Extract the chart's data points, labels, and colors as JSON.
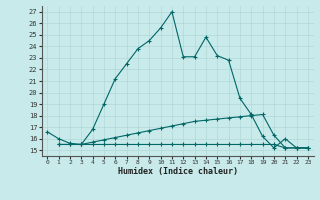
{
  "xlabel": "Humidex (Indice chaleur)",
  "ylabel": "",
  "bg_color": "#c8eaea",
  "grid_color": "#b0d8d8",
  "line_color": "#006666",
  "xlim": [
    -0.5,
    23.5
  ],
  "ylim": [
    14.5,
    27.5
  ],
  "xticks": [
    0,
    1,
    2,
    3,
    4,
    5,
    6,
    7,
    8,
    9,
    10,
    11,
    12,
    13,
    14,
    15,
    16,
    17,
    18,
    19,
    20,
    21,
    22,
    23
  ],
  "yticks": [
    15,
    16,
    17,
    18,
    19,
    20,
    21,
    22,
    23,
    24,
    25,
    26,
    27
  ],
  "line1_x": [
    0,
    1,
    2,
    3,
    4,
    5,
    6,
    7,
    8,
    9,
    10,
    11,
    12,
    13,
    14,
    15,
    16,
    17,
    18,
    19,
    20,
    21,
    22,
    23
  ],
  "line1_y": [
    16.6,
    16.0,
    15.6,
    15.5,
    16.8,
    19.0,
    21.2,
    22.5,
    23.8,
    24.5,
    25.6,
    27.0,
    23.1,
    23.1,
    24.8,
    23.2,
    22.8,
    19.5,
    18.1,
    16.2,
    15.2,
    16.0,
    15.2,
    15.2
  ],
  "line2_x": [
    1,
    2,
    3,
    4,
    5,
    6,
    7,
    8,
    9,
    10,
    11,
    12,
    13,
    14,
    15,
    16,
    17,
    18,
    19,
    20,
    21,
    22,
    23
  ],
  "line2_y": [
    15.5,
    15.5,
    15.5,
    15.5,
    15.5,
    15.5,
    15.5,
    15.5,
    15.5,
    15.5,
    15.5,
    15.5,
    15.5,
    15.5,
    15.5,
    15.5,
    15.5,
    15.5,
    15.5,
    15.5,
    15.2,
    15.2,
    15.2
  ],
  "line3_x": [
    1,
    2,
    3,
    4,
    5,
    6,
    7,
    8,
    9,
    10,
    11,
    12,
    13,
    14,
    15,
    16,
    17,
    18,
    19,
    20,
    21,
    22,
    23
  ],
  "line3_y": [
    15.5,
    15.5,
    15.5,
    15.7,
    15.9,
    16.1,
    16.3,
    16.5,
    16.7,
    16.9,
    17.1,
    17.3,
    17.5,
    17.6,
    17.7,
    17.8,
    17.9,
    18.0,
    18.1,
    16.3,
    15.2,
    15.2,
    15.2
  ]
}
